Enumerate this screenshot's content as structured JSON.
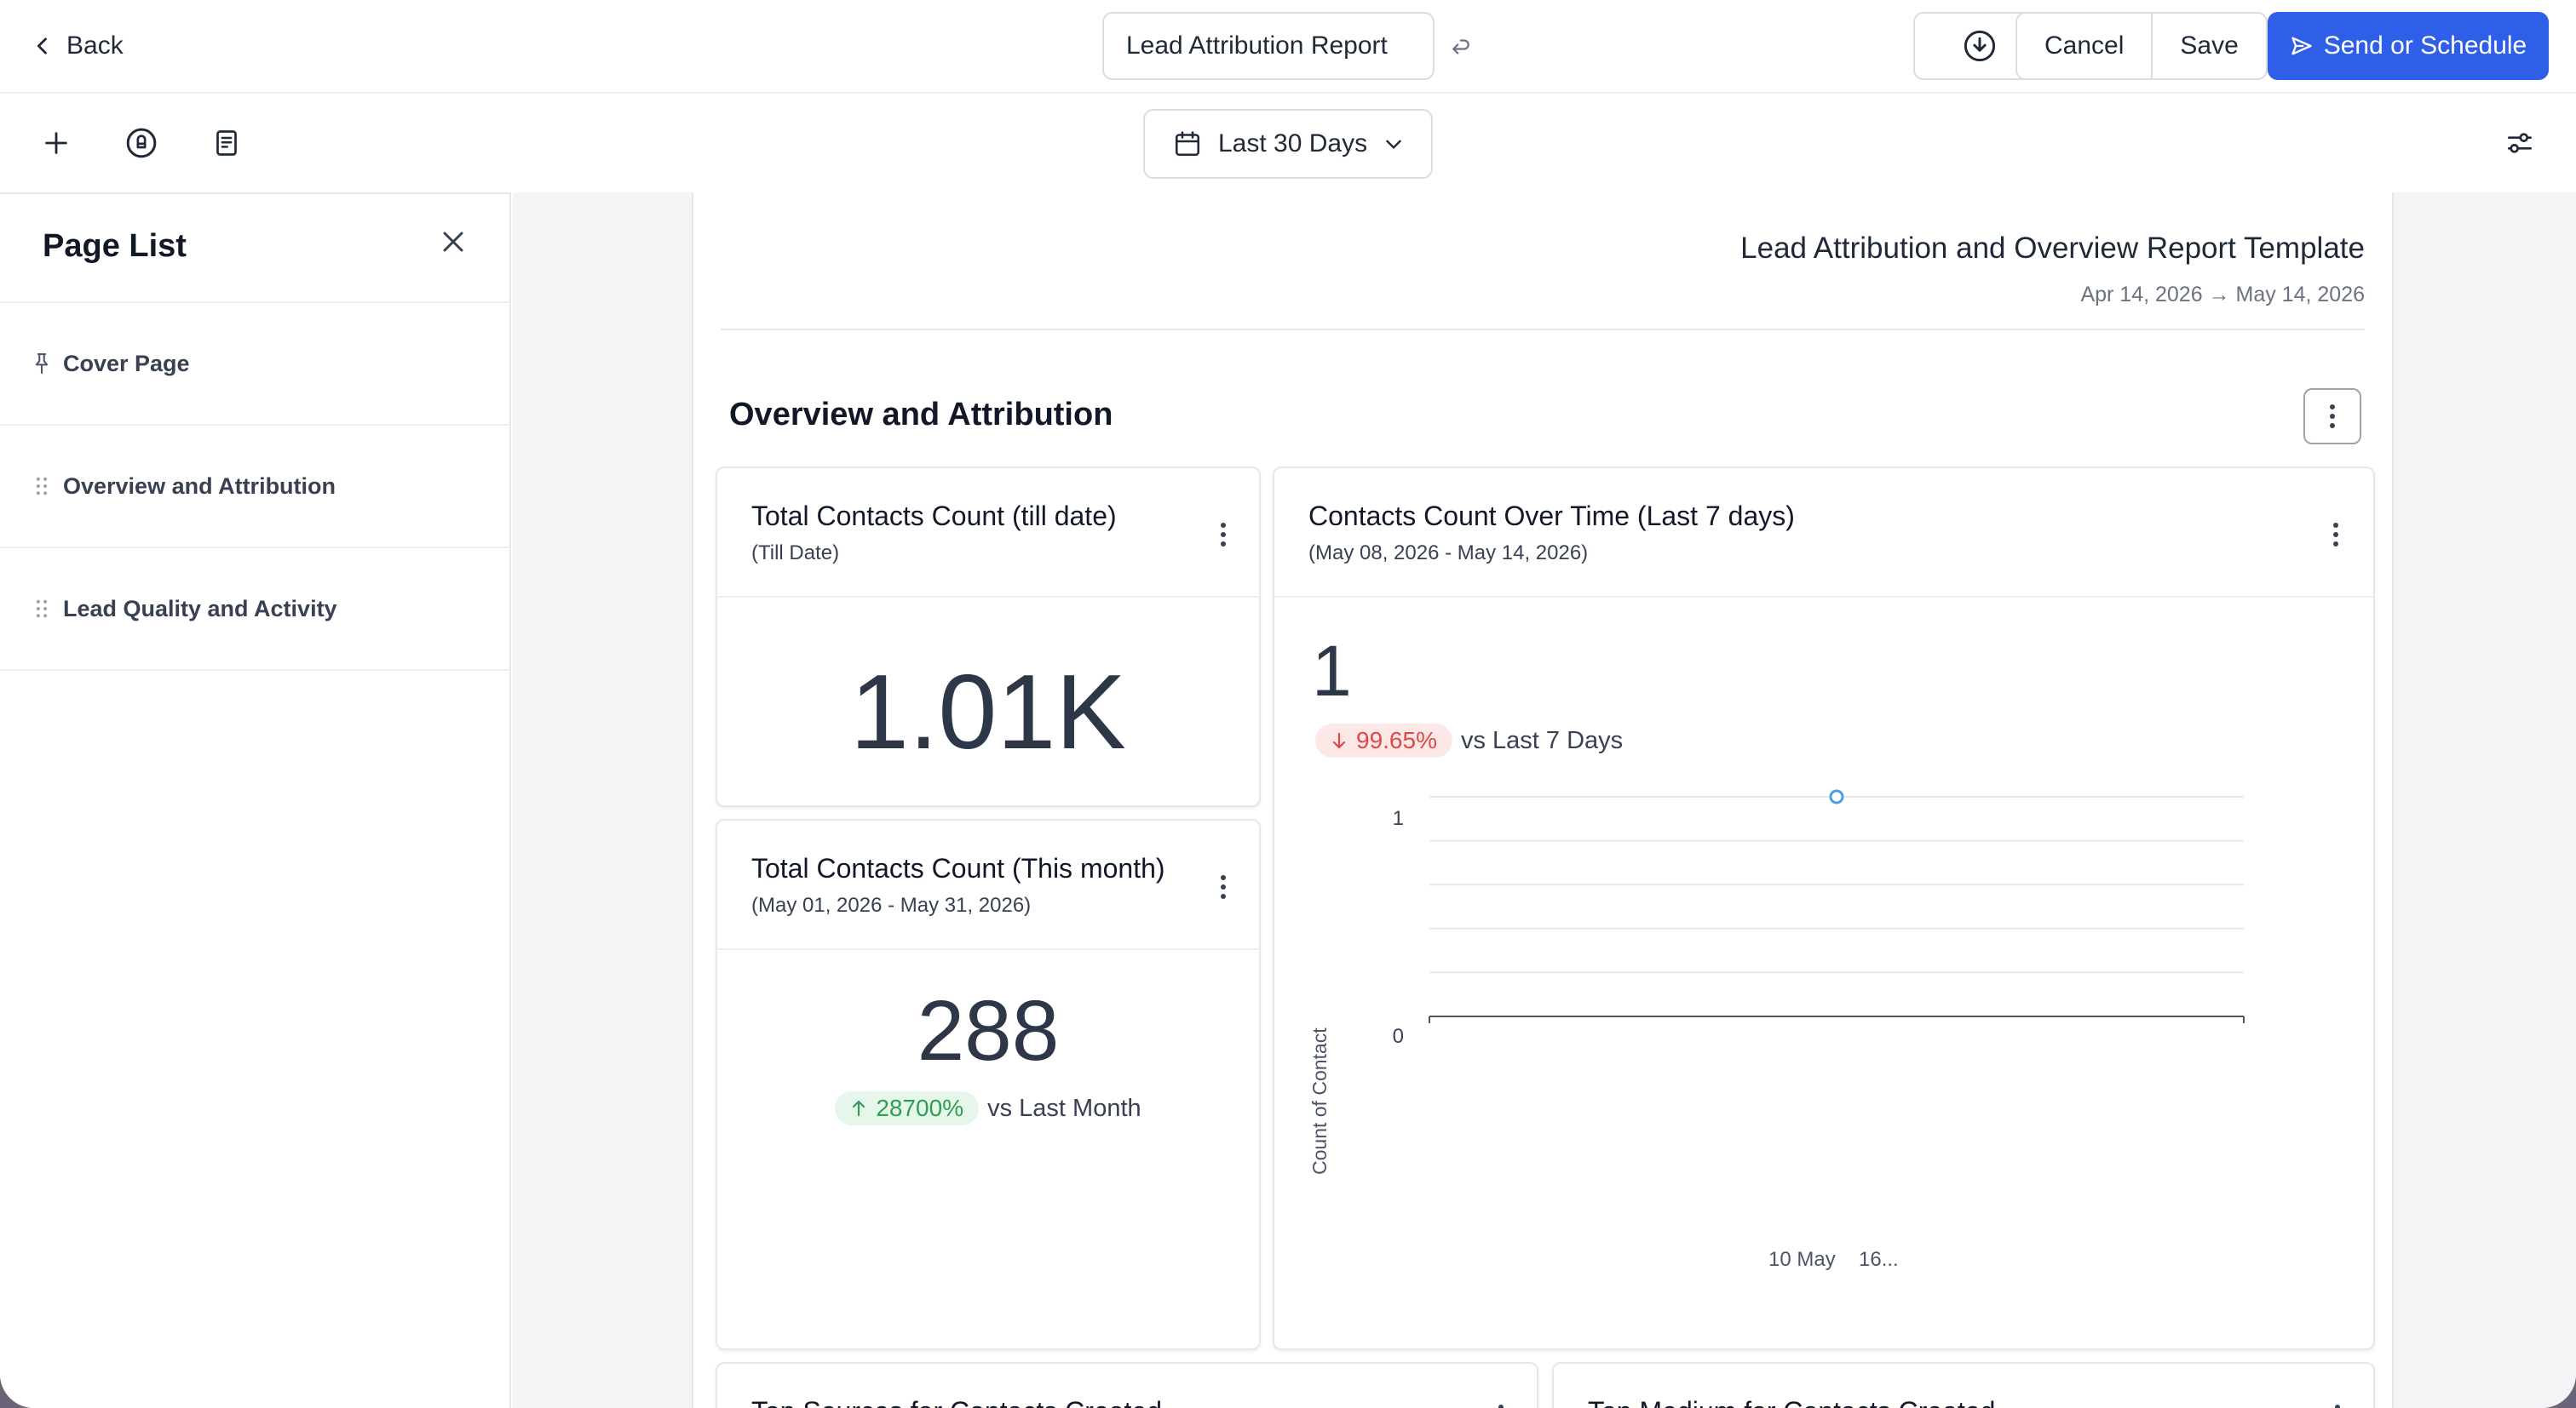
{
  "header": {
    "back_label": "Back",
    "report_name": "Lead Attribution Report",
    "cancel_label": "Cancel",
    "save_label": "Save",
    "send_label": "Send or Schedule",
    "accent_color": "#2f5fe9"
  },
  "toolbar": {
    "date_range": "Last 30 Days",
    "icons": [
      "plus-icon",
      "badge-icon",
      "document-icon",
      "filter-settings-icon"
    ]
  },
  "sidebar": {
    "title": "Page List",
    "items": [
      {
        "label": "Cover Page",
        "icon": "pin-icon"
      },
      {
        "label": "Overview and Attribution",
        "icon": "drag-handle-icon"
      },
      {
        "label": "Lead Quality and Activity",
        "icon": "drag-handle-icon"
      }
    ]
  },
  "report": {
    "title": "Lead Attribution and Overview Report Template",
    "date_range": "Apr 14, 2026 → May 14, 2026",
    "section_title": "Overview and Attribution"
  },
  "cards": {
    "total_contacts": {
      "title": "Total Contacts Count (till date)",
      "subtitle": "(Till Date)",
      "value": "1.01K"
    },
    "month_contacts": {
      "title": "Total Contacts Count (This month)",
      "subtitle": "(May 01, 2026 - May 31, 2026)",
      "value": "288",
      "change": "28700%",
      "change_direction": "up",
      "comparison": "vs Last Month",
      "up_color": "#2f9e52"
    },
    "contacts_over_time": {
      "title": "Contacts Count Over Time (Last 7 days)",
      "subtitle": "(May 08, 2026 - May 14, 2026)",
      "value": "1",
      "change": "99.65%",
      "change_direction": "down",
      "comparison": "vs Last 7 Days",
      "down_color": "#e04848"
    },
    "top_sources": {
      "title": "Top Sources for Contacts Created"
    },
    "top_medium": {
      "title": "Top Medium for Contacts Created"
    }
  },
  "chart_data": {
    "type": "line",
    "x_tick_labels": [
      "10 May",
      "16..."
    ],
    "y_ticks": [
      "1",
      "0"
    ],
    "ylabel": "Count of Contact",
    "ylim": [
      0,
      1
    ],
    "series": [
      {
        "points": [
          {
            "x": "10 May",
            "y": 1
          }
        ]
      }
    ],
    "grid": true,
    "point_color": "#4a9ee8"
  }
}
